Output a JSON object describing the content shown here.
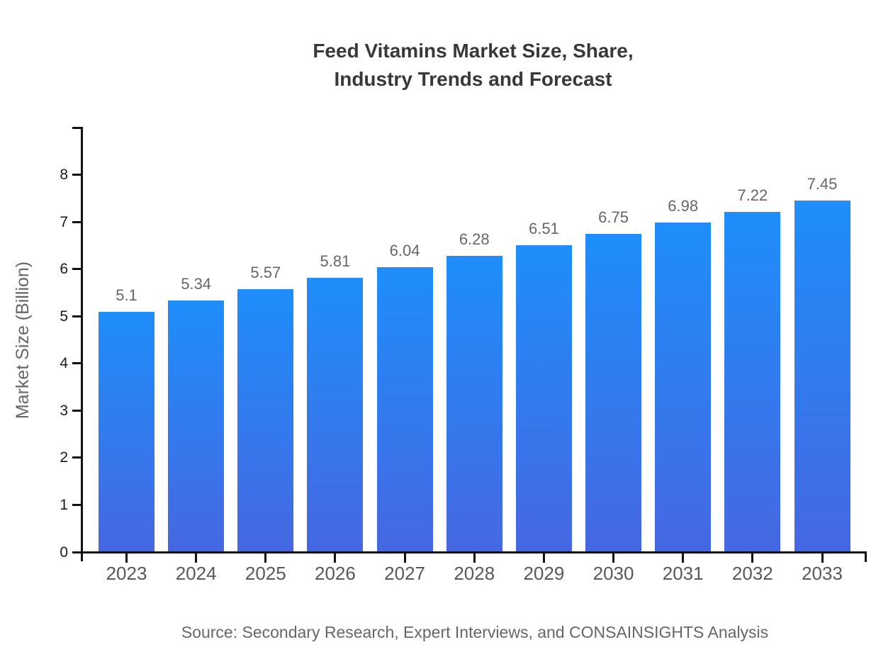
{
  "title": {
    "lines": [
      "Feed Vitamins Market Size, Share,",
      "Industry Trends and Forecast"
    ]
  },
  "source_note": "Source: Secondary Research, Expert Interviews, and CONSAINSIGHTS Analysis",
  "chart_data": {
    "type": "bar",
    "title": "Feed Vitamins Market Size, Share, Industry Trends and Forecast",
    "categories": [
      "2023",
      "2024",
      "2025",
      "2026",
      "2027",
      "2028",
      "2029",
      "2030",
      "2031",
      "2032",
      "2033"
    ],
    "values": [
      5.1,
      5.34,
      5.57,
      5.81,
      6.04,
      6.28,
      6.51,
      6.75,
      6.98,
      7.22,
      7.45
    ],
    "value_labels": [
      "5.1",
      "5.34",
      "5.57",
      "5.81",
      "6.04",
      "6.28",
      "6.51",
      "6.75",
      "6.98",
      "7.22",
      "7.45"
    ],
    "xlabel": "",
    "ylabel": "Market Size (Billion)",
    "ylim": [
      0,
      9
    ],
    "yticks": [
      0,
      1,
      2,
      3,
      4,
      5,
      6,
      7,
      8
    ],
    "grid": false,
    "legend": "none",
    "colors": {
      "bar_gradient_top": "#1E8EFA",
      "bar_gradient_bottom": "#4667E2",
      "axis": "#111111",
      "y_tick_label": "#1a1a1a",
      "x_tick_label": "#595959",
      "value_label": "#666666",
      "title": "#383838",
      "axis_label": "#666666",
      "source": "#666666",
      "background": "#ffffff"
    }
  }
}
